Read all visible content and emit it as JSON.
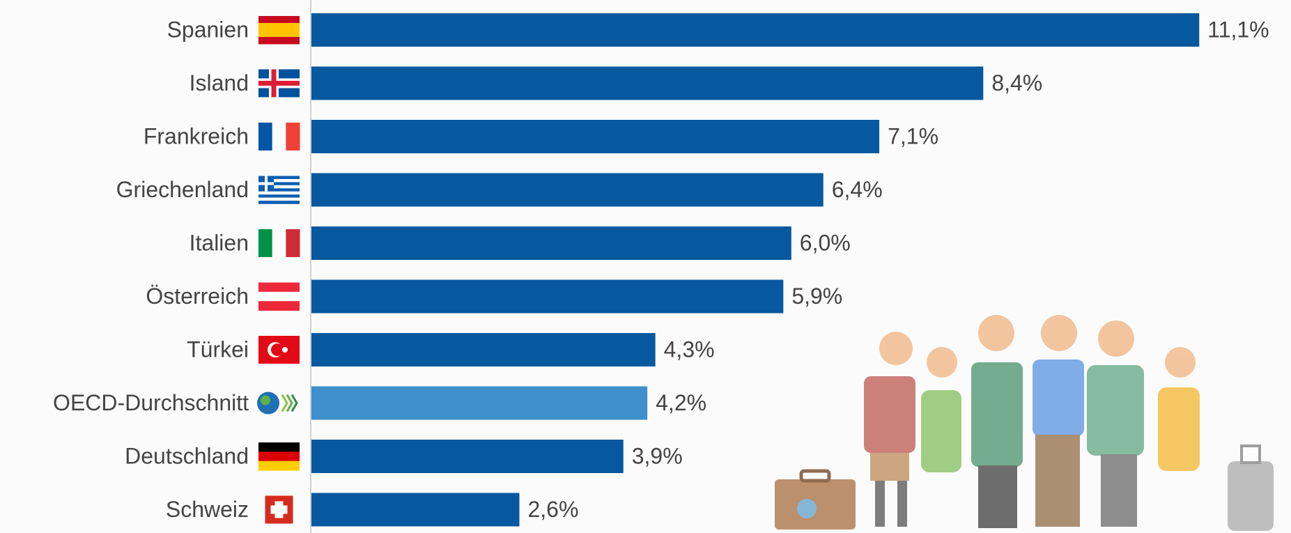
{
  "chart_data": {
    "type": "bar",
    "orientation": "horizontal",
    "categories": [
      "Spanien",
      "Island",
      "Frankreich",
      "Griechenland",
      "Italien",
      "Österreich",
      "Türkei",
      "OECD-Durchschnitt",
      "Deutschland",
      "Schweiz"
    ],
    "values": [
      11.1,
      8.4,
      7.1,
      6.4,
      6.0,
      5.9,
      4.3,
      4.2,
      3.9,
      2.6
    ],
    "value_labels": [
      "11,1%",
      "8,4%",
      "7,1%",
      "6,4%",
      "6,0%",
      "5,9%",
      "4,3%",
      "4,2%",
      "3,9%",
      "2,6%"
    ],
    "colors": [
      "#07599f",
      "#07599f",
      "#07599f",
      "#07599f",
      "#07599f",
      "#07599f",
      "#07599f",
      "#3e8fcb",
      "#07599f",
      "#07599f"
    ]
  }
}
